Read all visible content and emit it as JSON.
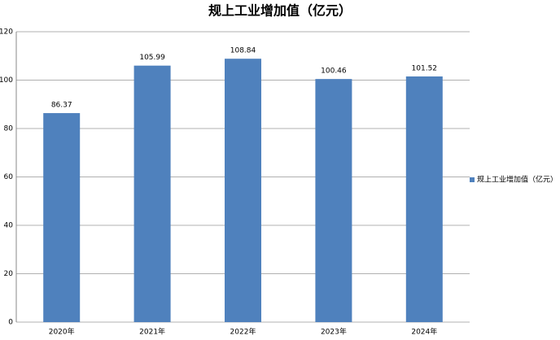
{
  "chart_data": {
    "type": "bar",
    "title": "规上工业增加值（亿元）",
    "categories": [
      "2020年",
      "2021年",
      "2022年",
      "2023年",
      "2024年"
    ],
    "series": [
      {
        "name": "规上工业增加值（亿元）",
        "color": "#4f81bd",
        "values": [
          86.37,
          105.99,
          108.84,
          100.46,
          101.52
        ]
      }
    ],
    "ylim": [
      0,
      120
    ],
    "yticks": [
      0,
      20,
      40,
      60,
      80,
      100,
      120
    ],
    "grid": true,
    "legend": "right",
    "data_labels": true
  }
}
